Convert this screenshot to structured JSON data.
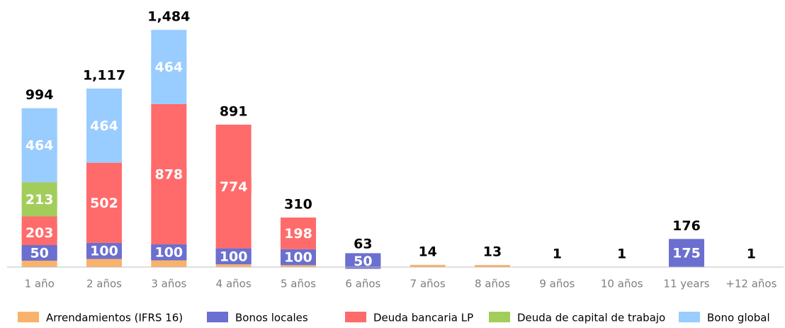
{
  "chart_data": {
    "type": "stacked_bar",
    "categories": [
      "1 año",
      "2 años",
      "3 años",
      "4 años",
      "5 años",
      "6 años",
      "7 años",
      "8 años",
      "9 años",
      "10 años",
      "11 years",
      "+12 años"
    ],
    "series": [
      {
        "name": "Arrendamientos (IFRS 16)",
        "color": "#f9b26b",
        "labeled": false,
        "values": [
          64,
          51,
          42,
          17,
          12,
          13,
          14,
          13,
          1,
          1,
          1,
          1
        ]
      },
      {
        "name": "Bonos locales",
        "color": "#6b6fcf",
        "labeled": true,
        "values": [
          50,
          100,
          100,
          100,
          100,
          50,
          0,
          0,
          0,
          0,
          175,
          0
        ]
      },
      {
        "name": "Deuda bancaria LP",
        "color": "#ff6b6b",
        "labeled": true,
        "values": [
          203,
          502,
          878,
          774,
          198,
          0,
          0,
          0,
          0,
          0,
          0,
          0
        ]
      },
      {
        "name": "Deuda de capital de trabajo",
        "color": "#a2cd5a",
        "labeled": true,
        "values": [
          213,
          0,
          0,
          0,
          0,
          0,
          0,
          0,
          0,
          0,
          0,
          0
        ]
      },
      {
        "name": "Bono global",
        "color": "#99ccff",
        "labeled": true,
        "values": [
          464,
          464,
          464,
          0,
          0,
          0,
          0,
          0,
          0,
          0,
          0,
          0
        ]
      }
    ],
    "totals": {
      "values": [
        994,
        1117,
        1484,
        891,
        310,
        63,
        14,
        13,
        1,
        1,
        176,
        1
      ],
      "value_labels": [
        "994",
        "1,117",
        "1,484",
        "891",
        "310",
        "63",
        "14",
        "13",
        "1",
        "1",
        "176",
        "1"
      ]
    },
    "ylim": [
      0,
      1600
    ],
    "legend": "bottom"
  }
}
